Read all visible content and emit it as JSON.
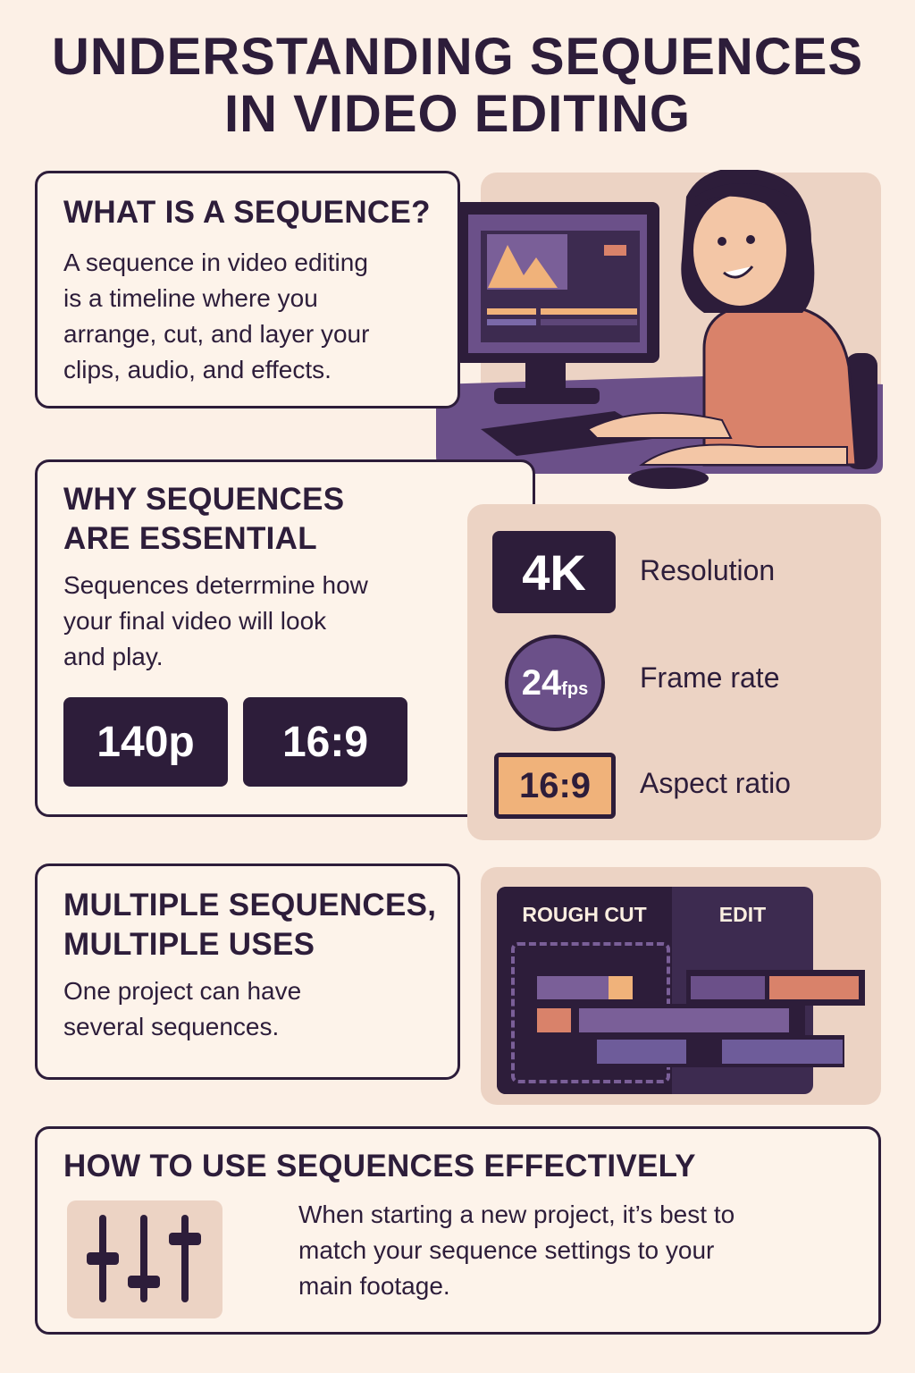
{
  "title": [
    "UNDERSTANDING SEQUENCES",
    "IN VIDEO EDITING"
  ],
  "what": {
    "title": "WHAT IS A SEQUENCE?",
    "body": [
      "A sequence in video editing",
      "is a timeline where you",
      "arrange, cut, and layer your",
      "clips, audio, and effects."
    ]
  },
  "why": {
    "title": [
      "WHY SEQUENCES",
      "ARE ESSENTIAL"
    ],
    "body": [
      "Sequences deterrmine how",
      "your final video will look",
      "and play."
    ],
    "chips": [
      "140p",
      "16:9"
    ]
  },
  "settings": [
    {
      "badge": "4K",
      "label": "Resolution"
    },
    {
      "badge": "24",
      "badge_unit": "fps",
      "label": "Frame rate"
    },
    {
      "badge": "16:9",
      "label": "Aspect ratio"
    }
  ],
  "multiple": {
    "title": [
      "MULTIPLE SEQUENCES,",
      "MULTIPLE USES"
    ],
    "body": [
      "One project can have",
      "several sequences."
    ]
  },
  "timeline": {
    "tabs": [
      "ROUGH CUT",
      "EDIT"
    ]
  },
  "how": {
    "title": "HOW TO USE SEQUENCES EFFECTIVELY",
    "icon": "sliders-icon",
    "body": [
      "When starting a new project, it’s best to",
      "match your sequence settings to your",
      "main footage."
    ]
  },
  "colors": {
    "dark": "#2d1d3a",
    "background": "#fcf0e6",
    "panel": "#ecd3c4",
    "purple": "#6b5089",
    "orange": "#f0b27a",
    "salmon": "#d9826a"
  }
}
